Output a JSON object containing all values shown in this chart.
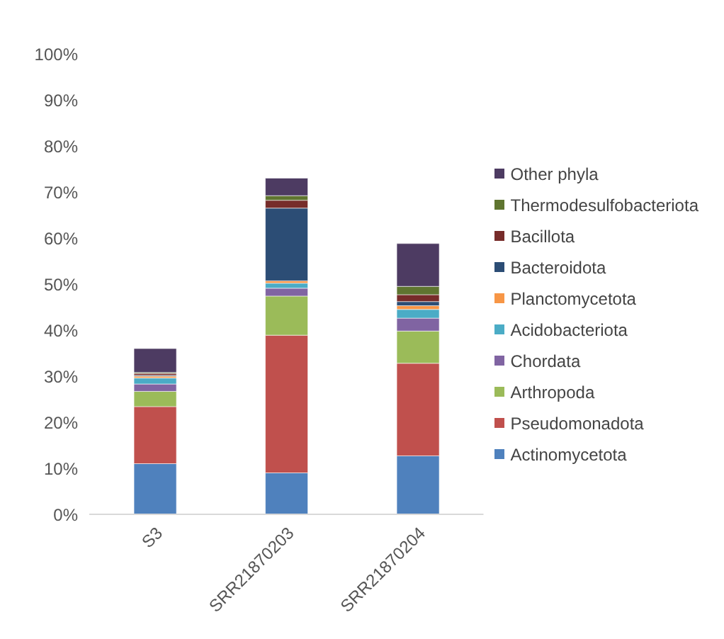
{
  "chart_data": {
    "type": "bar",
    "stacked": true,
    "categories": [
      "S3",
      "SRR21870203",
      "SRR21870204"
    ],
    "series": [
      {
        "name": "Actinomycetota",
        "color": "#4f81bd",
        "values": [
          11,
          9,
          12.7
        ]
      },
      {
        "name": "Pseudomonadota",
        "color": "#c0504d",
        "values": [
          12.4,
          29.9,
          20.1
        ]
      },
      {
        "name": "Arthropoda",
        "color": "#9bbb59",
        "values": [
          3.3,
          8.5,
          7
        ]
      },
      {
        "name": "Chordata",
        "color": "#8064a2",
        "values": [
          1.6,
          1.7,
          2.8
        ]
      },
      {
        "name": "Acidobacteriota",
        "color": "#4bacc6",
        "values": [
          1.3,
          1.1,
          1.9
        ]
      },
      {
        "name": "Planctomycetota",
        "color": "#f79646",
        "values": [
          0.4,
          0.5,
          0.8
        ]
      },
      {
        "name": "Bacteroidota",
        "color": "#2c4d75",
        "values": [
          0.2,
          15.8,
          0.9
        ]
      },
      {
        "name": "Bacillota",
        "color": "#772c2a",
        "values": [
          0.4,
          1.7,
          1.5
        ]
      },
      {
        "name": "Thermodesulfobacteriota",
        "color": "#5f7530",
        "values": [
          0.2,
          1,
          1.8
        ]
      },
      {
        "name": "Other phyla",
        "color": "#4d3b62",
        "values": [
          5.2,
          3.8,
          9.3
        ]
      }
    ],
    "ylim": [
      0,
      100
    ],
    "yticks": [
      {
        "value": 0,
        "label": "0%"
      },
      {
        "value": 10,
        "label": "10%"
      },
      {
        "value": 20,
        "label": "20%"
      },
      {
        "value": 30,
        "label": "30%"
      },
      {
        "value": 40,
        "label": "40%"
      },
      {
        "value": 50,
        "label": "50%"
      },
      {
        "value": 60,
        "label": "60%"
      },
      {
        "value": 70,
        "label": "70%"
      },
      {
        "value": 80,
        "label": "80%"
      },
      {
        "value": 90,
        "label": "90%"
      },
      {
        "value": 100,
        "label": "100%"
      }
    ],
    "legend": "right",
    "grid": false
  }
}
